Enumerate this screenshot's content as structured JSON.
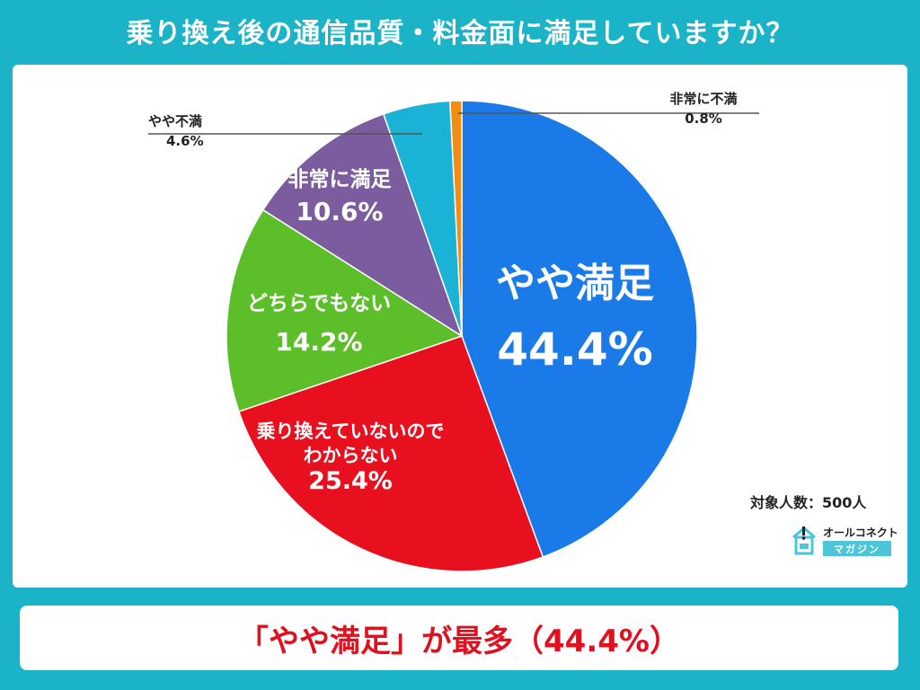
{
  "header": {
    "title": "乗り換え後の通信品質・料金面に満足していますか？"
  },
  "chart_data": {
    "type": "pie",
    "slices": [
      {
        "label": "やや満足",
        "value": 44.4,
        "value_label": "44.4%",
        "color": "#1a7be8"
      },
      {
        "label": "乗り換えていないのでわからない",
        "label_lines": [
          "乗り換えていないので",
          "わからない"
        ],
        "value": 25.4,
        "value_label": "25.4%",
        "color": "#e8101e"
      },
      {
        "label": "どちらでもない",
        "value": 14.2,
        "value_label": "14.2%",
        "color": "#5cbf2a"
      },
      {
        "label": "非常に満足",
        "value": 10.6,
        "value_label": "10.6%",
        "color": "#7a5c9f"
      },
      {
        "label": "やや不満",
        "value": 4.6,
        "value_label": "4.6%",
        "color": "#1ab3d6"
      },
      {
        "label": "非常に不満",
        "value": 0.8,
        "value_label": "0.8%",
        "color": "#f28c12"
      }
    ]
  },
  "footer": {
    "sample_size": "対象人数：500人",
    "logo_top": "オールコネクト",
    "logo_bottom": "マガジン",
    "conclusion": "「やや満足」が最多（44.4%）"
  }
}
